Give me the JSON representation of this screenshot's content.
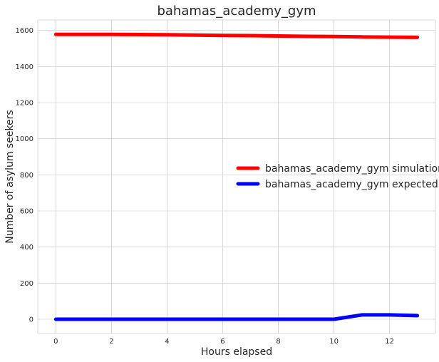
{
  "chart_data": {
    "type": "line",
    "title": "bahamas_academy_gym",
    "xlabel": "Hours elapsed",
    "ylabel": "Number of asylum seekers",
    "xlim": [
      -0.65,
      13.65
    ],
    "ylim": [
      -79,
      1658
    ],
    "xticks": [
      0,
      2,
      4,
      6,
      8,
      10,
      12
    ],
    "yticks": [
      0,
      200,
      400,
      600,
      800,
      1000,
      1200,
      1400,
      1600
    ],
    "grid": true,
    "legend_position": "center-right",
    "series": [
      {
        "name": "bahamas_academy_gym simulation",
        "color": "#ff0000",
        "x": [
          0,
          1,
          2,
          3,
          4,
          5,
          6,
          7,
          8,
          9,
          10,
          11,
          12,
          13
        ],
        "y": [
          1578,
          1578,
          1578,
          1577,
          1576,
          1574,
          1572,
          1571,
          1569,
          1567,
          1566,
          1564,
          1563,
          1562
        ]
      },
      {
        "name": "bahamas_academy_gym expected",
        "color": "#0000ff",
        "x": [
          0,
          1,
          2,
          3,
          4,
          5,
          6,
          7,
          8,
          9,
          10,
          11,
          12,
          13
        ],
        "y": [
          0,
          0,
          0,
          0,
          0,
          0,
          0,
          0,
          0,
          0,
          0,
          24,
          24,
          20
        ]
      }
    ]
  }
}
